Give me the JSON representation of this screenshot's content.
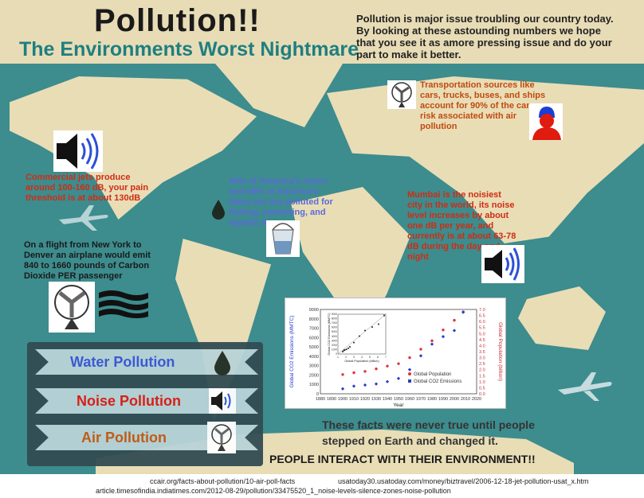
{
  "title": "Pollution!!",
  "subtitle": "The Environments Worst Nightmare",
  "intro": "Pollution is  major issue troubling our country today. By looking at these astounding numbers we hope that you see it as amore pressing issue and do your part to make it better.",
  "facts": {
    "transport": "Transportation sources like cars, trucks, buses, and ships account for 90% of the cancer risk associated with air pollution",
    "jets": "Commercial jets produce around 100-160 dB, your pain threshold is at about 130dB",
    "rivers": "40% of America's rivers and 46% of America's lakes are too polluted for fishing, swimming, and aquatic life",
    "mumbai": "Mumbai is the noisiest city in the world, its noise level increases by about one dB per year, and currently is at about 63-78 dB during the day and night",
    "flight": "On a flight from New York to Denver an airplane would emit 840 to 1660 pounds of Carbon Dioxide PER passenger"
  },
  "legend": {
    "water": "Water Pollution",
    "noise": "Noise Pollution",
    "air": "Air Pollution",
    "colors": {
      "water": "#3b57d6",
      "noise": "#e01b10",
      "air": "#c75a12"
    }
  },
  "closing": {
    "line1": "These facts were never true until people",
    "line2": "stepped on Earth and changed it.",
    "line3": "PEOPLE INTERACT WITH THEIR ENVIRONMENT!!"
  },
  "sources": {
    "s1": "ccair.org/facts-about-pollution/10-air-poll-facts",
    "s2": "usatoday30.usatoday.com/money/biztravel/2006-12-18-jet-pollution-usat_x.htm",
    "s3": "article.timesofindia.indiatimes.com/2012-08-29/pollution/33475520_1_noise-levels-silence-zones-noise-pollution"
  },
  "chart_data": {
    "type": "line",
    "xlabel": "Year",
    "ylabel": "Global CO2 Emissions (MMTC)",
    "ylabel2": "Global Population (billion)",
    "x_ticks": [
      "1880",
      "1890",
      "1900",
      "1910",
      "1920",
      "1930",
      "1940",
      "1950",
      "1960",
      "1970",
      "1980",
      "1990",
      "2000",
      "2010",
      "2020"
    ],
    "y_ticks": [
      "0",
      "1000",
      "2000",
      "3000",
      "4000",
      "5000",
      "6000",
      "7000",
      "8000",
      "9000"
    ],
    "y2_ticks": [
      "0.0",
      "0.5",
      "1.0",
      "1.5",
      "2.0",
      "2.5",
      "3.0",
      "3.5",
      "4.0",
      "4.5",
      "5.0",
      "5.5",
      "6.0",
      "6.5",
      "7.0"
    ],
    "xlim": [
      1880,
      2020
    ],
    "ylim": [
      0,
      9000
    ],
    "y2lim": [
      0,
      7
    ],
    "series": [
      {
        "name": "Global Population",
        "color": "#e0343b",
        "x": [
          1900,
          1910,
          1920,
          1930,
          1940,
          1950,
          1960,
          1970,
          1980,
          1990,
          2000,
          2008
        ],
        "values": [
          1.6,
          1.75,
          1.86,
          2.07,
          2.3,
          2.5,
          3.0,
          3.7,
          4.4,
          5.3,
          6.1,
          6.8
        ]
      },
      {
        "name": "Global CO2 Emissions",
        "color": "#2a3cc9",
        "x": [
          1900,
          1910,
          1920,
          1930,
          1940,
          1950,
          1960,
          1970,
          1980,
          1990,
          2000,
          2008
        ],
        "values": [
          530,
          820,
          930,
          1050,
          1300,
          1630,
          2580,
          4050,
          5300,
          6100,
          6750,
          8700
        ]
      }
    ],
    "inset": {
      "xlabel": "Global Population (billion)",
      "ylabel": "Global CO2 Emissions (MMTC)",
      "x_ticks": [
        "1",
        "2",
        "3",
        "4",
        "5",
        "6",
        "7"
      ],
      "y_ticks": [
        "0",
        "1000",
        "2000",
        "3000",
        "4000",
        "5000",
        "6000",
        "7000",
        "8000",
        "9000"
      ],
      "xlim": [
        1,
        7
      ],
      "ylim": [
        0,
        9000
      ],
      "points": [
        [
          1.6,
          530
        ],
        [
          1.75,
          820
        ],
        [
          1.86,
          930
        ],
        [
          2.07,
          1050
        ],
        [
          2.3,
          1300
        ],
        [
          2.5,
          1630
        ],
        [
          3.0,
          2580
        ],
        [
          3.7,
          4050
        ],
        [
          4.4,
          5300
        ],
        [
          5.3,
          6100
        ],
        [
          6.1,
          6750
        ],
        [
          6.8,
          8700
        ]
      ]
    }
  }
}
